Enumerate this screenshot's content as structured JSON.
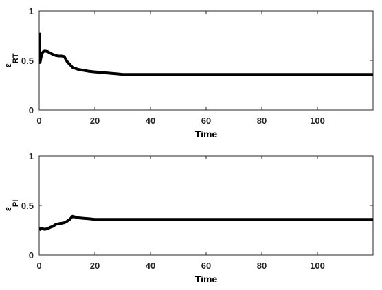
{
  "chart_data": [
    {
      "type": "line",
      "ylabel": {
        "symbol": "ε",
        "subscript": "RT"
      },
      "xlabel": "Time",
      "xlim": [
        0,
        120
      ],
      "ylim": [
        0,
        1
      ],
      "xticks": [
        0,
        20,
        40,
        60,
        80,
        100
      ],
      "yticks": [
        0,
        0.5,
        1
      ],
      "ytick_labels": [
        "0",
        "0.5",
        "1"
      ],
      "grid": false,
      "color": "#000000",
      "series": [
        {
          "x": [
            0,
            0.3,
            0.6,
            0.9,
            1.2,
            1.5,
            2,
            3,
            4,
            5,
            6,
            7,
            8,
            9,
            10,
            12,
            14,
            16,
            18,
            20,
            22,
            24,
            26,
            28,
            30,
            40,
            60,
            80,
            100,
            120
          ],
          "y": [
            0.78,
            0.48,
            0.52,
            0.56,
            0.58,
            0.59,
            0.595,
            0.59,
            0.575,
            0.56,
            0.55,
            0.545,
            0.545,
            0.54,
            0.49,
            0.43,
            0.41,
            0.4,
            0.39,
            0.385,
            0.38,
            0.375,
            0.37,
            0.365,
            0.36,
            0.36,
            0.36,
            0.36,
            0.36,
            0.36
          ]
        }
      ]
    },
    {
      "type": "line",
      "ylabel": {
        "symbol": "ε",
        "subscript": "PI"
      },
      "xlabel": "Time",
      "xlim": [
        0,
        120
      ],
      "ylim": [
        0,
        1
      ],
      "xticks": [
        0,
        20,
        40,
        60,
        80,
        100
      ],
      "yticks": [
        0,
        0.5,
        1
      ],
      "ytick_labels": [
        "0",
        "0.5",
        "1"
      ],
      "grid": false,
      "color": "#000000",
      "series": [
        {
          "x": [
            0,
            0.5,
            1,
            2,
            3,
            4,
            5,
            6,
            7,
            8,
            9,
            10,
            11,
            12,
            14,
            16,
            18,
            20,
            30,
            40,
            60,
            80,
            100,
            120
          ],
          "y": [
            0.25,
            0.27,
            0.265,
            0.26,
            0.265,
            0.28,
            0.29,
            0.31,
            0.315,
            0.32,
            0.325,
            0.34,
            0.36,
            0.39,
            0.375,
            0.37,
            0.365,
            0.36,
            0.36,
            0.36,
            0.36,
            0.36,
            0.36,
            0.36
          ]
        }
      ]
    }
  ]
}
